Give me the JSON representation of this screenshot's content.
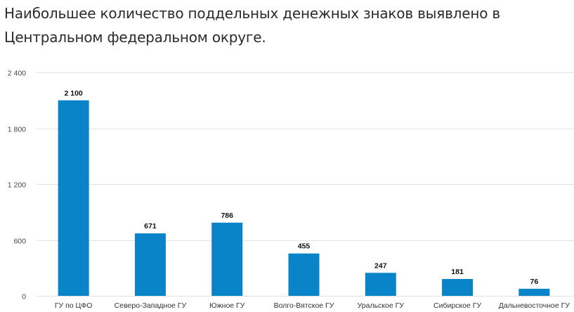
{
  "title": "Наибольшее количество поддельных денежных знаков выявлено в Центральном федеральном округе.",
  "colors": {
    "bar": "#0a84c8",
    "grid": "#e2e2e2",
    "text": "#222222"
  },
  "chart_data": {
    "type": "bar",
    "categories": [
      "ГУ по ЦФО",
      "Северо-Западное ГУ",
      "Южное ГУ",
      "Волго-Вятское ГУ",
      "Уральское ГУ",
      "Сибирское ГУ",
      "Дальневосточное ГУ"
    ],
    "values": [
      2100,
      671,
      786,
      455,
      247,
      181,
      76
    ],
    "value_labels": [
      "2 100",
      "671",
      "786",
      "455",
      "247",
      "181",
      "76"
    ],
    "yticks": [
      0,
      600,
      1200,
      1800,
      2400
    ],
    "ytick_labels": [
      "0",
      "600",
      "1 200",
      "1 800",
      "2 400"
    ],
    "ylim": [
      0,
      2400
    ],
    "grid": true,
    "legend": "none"
  }
}
